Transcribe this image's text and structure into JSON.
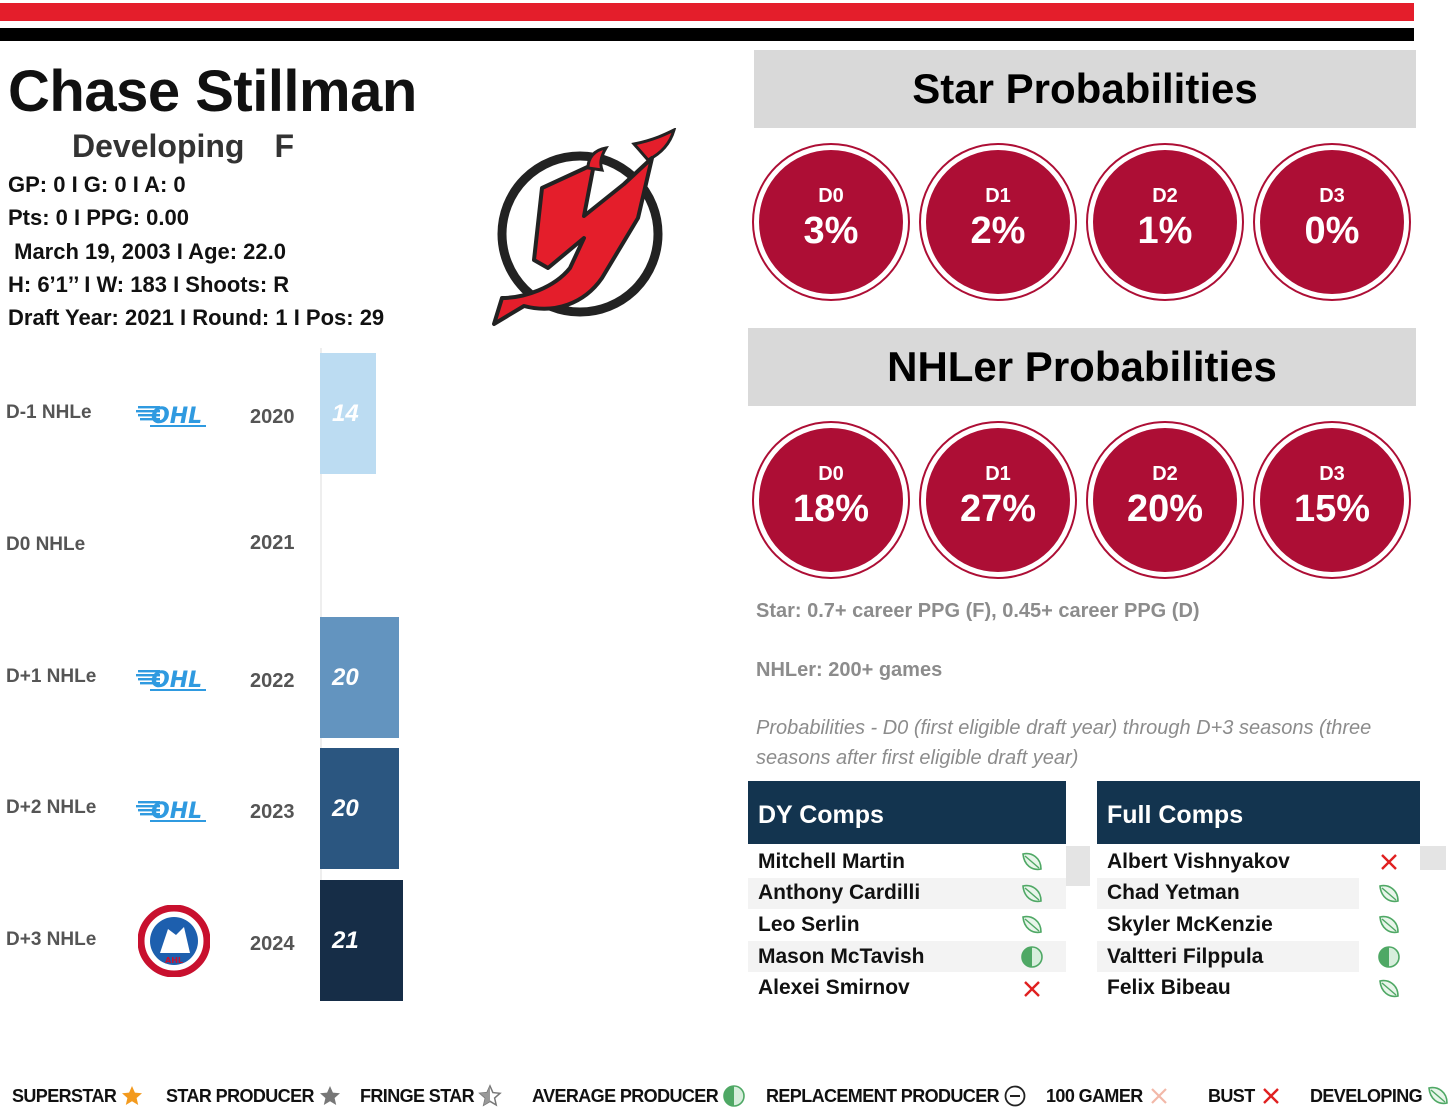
{
  "player": {
    "name": "Chase Stillman",
    "status": "Developing",
    "position": "F",
    "line1": "GP: 0 I G: 0 I A: 0",
    "line2": "Pts: 0 I PPG: 0.00",
    "line3": " March 19, 2003 I Age: 22.0",
    "line4": "H: 6’1’’ I W: 183 I Shoots: R",
    "line5": "Draft Year: 2021 I Round: 1 I Pos: 29"
  },
  "team_logo": "new-jersey-devils-logo",
  "colors": {
    "accent_red": "#e41e2b",
    "circle": "#ad0e35",
    "comp_header": "#13344f"
  },
  "chart_data": {
    "type": "bar",
    "orientation": "horizontal",
    "categories": [
      "D-1 NHLe",
      "D0 NHLe",
      "D+1 NHLe",
      "D+2 NHLe",
      "D+3 NHLe"
    ],
    "years": [
      "2020",
      "2021",
      "2022",
      "2023",
      "2024"
    ],
    "leagues": [
      "OHL",
      "",
      "OHL",
      "OHL",
      "AHL"
    ],
    "values": [
      14,
      null,
      20,
      20,
      21
    ],
    "labels": [
      "14",
      "",
      "20",
      "20",
      "21"
    ],
    "bar_colors": [
      "#bcdcf2",
      "#ffffff",
      "#6394bf",
      "#2b5680",
      "#162d47"
    ]
  },
  "star_prob": {
    "title": "Star Probabilities",
    "items": [
      {
        "d": "D0",
        "p": "3%"
      },
      {
        "d": "D1",
        "p": "2%"
      },
      {
        "d": "D2",
        "p": "1%"
      },
      {
        "d": "D3",
        "p": "0%"
      }
    ]
  },
  "nhler_prob": {
    "title": "NHLer Probabilities",
    "items": [
      {
        "d": "D0",
        "p": "18%"
      },
      {
        "d": "D1",
        "p": "27%"
      },
      {
        "d": "D2",
        "p": "20%"
      },
      {
        "d": "D3",
        "p": "15%"
      }
    ]
  },
  "notes": {
    "star_def": "Star: 0.7+ career PPG (F), 0.45+ career PPG (D)",
    "nhler_def": "NHLer: 200+ games",
    "prob_def": "Probabilities - D0 (first eligible draft year) through D+3 seasons (three seasons after first eligible draft year)"
  },
  "dy_comps": {
    "title": "DY Comps",
    "rows": [
      {
        "name": "Mitchell Martin",
        "icon": "developing-leaf-icon"
      },
      {
        "name": "Anthony Cardilli",
        "icon": "developing-leaf-icon"
      },
      {
        "name": "Leo Serlin",
        "icon": "developing-leaf-icon"
      },
      {
        "name": "Mason McTavish",
        "icon": "average-producer-half-circle-icon"
      },
      {
        "name": "Alexei Smirnov",
        "icon": "bust-x-icon"
      }
    ]
  },
  "full_comps": {
    "title": "Full Comps",
    "rows": [
      {
        "name": "Albert Vishnyakov",
        "icon": "bust-x-icon"
      },
      {
        "name": "Chad Yetman",
        "icon": "developing-leaf-icon"
      },
      {
        "name": "Skyler McKenzie",
        "icon": "developing-leaf-icon"
      },
      {
        "name": "Valtteri Filppula",
        "icon": "average-producer-half-circle-icon"
      },
      {
        "name": "Felix Bibeau",
        "icon": "developing-leaf-icon"
      }
    ]
  },
  "legend": [
    {
      "label": "SUPERSTAR",
      "icon": "orange-star-icon"
    },
    {
      "label": "STAR PRODUCER",
      "icon": "gray-star-icon"
    },
    {
      "label": "FRINGE STAR",
      "icon": "outline-star-icon"
    },
    {
      "label": "AVERAGE PRODUCER",
      "icon": "half-circle-icon"
    },
    {
      "label": "REPLACEMENT PRODUCER",
      "icon": "minus-circle-icon"
    },
    {
      "label": "100 GAMER",
      "icon": "light-x-icon"
    },
    {
      "label": "BUST",
      "icon": "red-x-icon"
    },
    {
      "label": "DEVELOPING",
      "icon": "leaf-icon"
    }
  ]
}
